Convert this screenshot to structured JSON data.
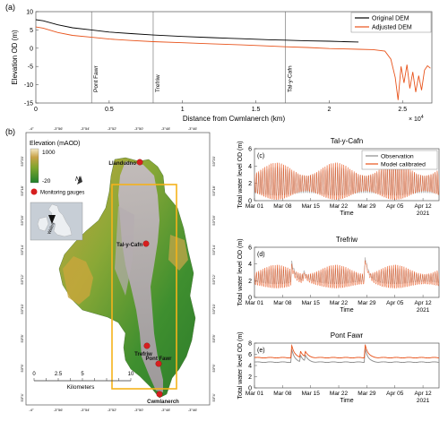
{
  "colors": {
    "original": "#000000",
    "adjusted": "#e8541c",
    "observation": "#8c8c8c",
    "model": "#e8541c",
    "gauge": "#d61f1f",
    "box": "#f5b21b"
  },
  "chart_data": [
    {
      "panel": "(a)",
      "type": "line",
      "xlabel": "Distance from Cwmlanerch (km)",
      "ylabel": "Elevation OD (m)",
      "x_multiplier": "× 10",
      "x_multiplier_exp": "4",
      "xlim": [
        0,
        27000
      ],
      "ylim": [
        -15,
        10
      ],
      "xticks": [
        0,
        5000,
        10000,
        15000,
        20000,
        25000
      ],
      "xtick_labels": [
        "0",
        "0.5",
        "1",
        "1.5",
        "2",
        "2.5"
      ],
      "yticks": [
        10,
        5,
        0,
        -5,
        -10,
        -15
      ],
      "vlines": [
        {
          "x": 3800,
          "label": "Pont Fawr"
        },
        {
          "x": 8000,
          "label": "Trefriw"
        },
        {
          "x": 17000,
          "label": "Tal-y-Cafn"
        }
      ],
      "legend_position": "top-right",
      "series": [
        {
          "name": "Original DEM",
          "color": "#000000",
          "x": [
            0,
            500,
            1500,
            2500,
            3800,
            5000,
            6500,
            8000,
            10000,
            12000,
            14000,
            16000,
            17000,
            18500,
            20000,
            21000,
            22000
          ],
          "y": [
            7.8,
            7.5,
            6.4,
            5.6,
            5.0,
            4.4,
            4.0,
            3.6,
            3.2,
            2.9,
            2.6,
            2.3,
            2.2,
            2.0,
            1.9,
            1.8,
            1.7
          ]
        },
        {
          "name": "Adjusted DEM",
          "color": "#e8541c",
          "x": [
            0,
            500,
            1500,
            2500,
            3800,
            5000,
            6500,
            8000,
            10000,
            12000,
            14000,
            16000,
            17000,
            18500,
            20000,
            21000,
            22000,
            23000,
            23800,
            24200,
            24500,
            24700,
            24900,
            25100,
            25300,
            25500,
            25700,
            25900,
            26100,
            26300,
            26500,
            26700,
            26900
          ],
          "y": [
            5.8,
            5.5,
            4.3,
            3.5,
            3.0,
            2.5,
            2.1,
            1.8,
            1.5,
            1.2,
            0.9,
            0.6,
            0.4,
            0.2,
            -0.1,
            -0.2,
            -0.3,
            -0.4,
            -0.8,
            -3.0,
            -8.0,
            -14.2,
            -5.0,
            -9.5,
            -4.5,
            -11.0,
            -6.5,
            -12.0,
            -7.5,
            -11.5,
            -6.0,
            -4.8,
            -5.5
          ]
        }
      ]
    },
    {
      "panel": "(c)",
      "type": "line",
      "title": "Tal-y-Cafn",
      "ylabel": "Total water level OD (m)",
      "xlabel": "Time",
      "year_label": "2021",
      "xtick_labels": [
        "Mar 01",
        "Mar 08",
        "Mar 15",
        "Mar 22",
        "Mar 29",
        "Apr 05",
        "Apr 12"
      ],
      "xlim_days": [
        0,
        46
      ],
      "ylim": [
        0,
        6
      ],
      "yticks": [
        0,
        2,
        4,
        6
      ],
      "legend_position": "top-right",
      "tidal": {
        "period_days": 0.5175,
        "spring_neap_days": 14.77,
        "spring_peak_day": 5.5
      },
      "series": [
        {
          "name": "Observation",
          "color": "#8c8c8c",
          "high": [
            2.9,
            3.9
          ],
          "low": [
            0.9,
            0.6
          ]
        },
        {
          "name": "Model calibrated",
          "color": "#e8541c",
          "high": [
            2.9,
            4.4
          ],
          "low": [
            1.1,
            0.1
          ]
        }
      ]
    },
    {
      "panel": "(d)",
      "type": "line",
      "title": "Trefriw",
      "ylabel": "Total water level OD (m)",
      "xlabel": "Time",
      "year_label": "2021",
      "xtick_labels": [
        "Mar 01",
        "Mar 08",
        "Mar 15",
        "Mar 22",
        "Mar 29",
        "Apr 05",
        "Apr 12"
      ],
      "xlim_days": [
        0,
        46
      ],
      "ylim": [
        0,
        6
      ],
      "yticks": [
        0,
        2,
        4,
        6
      ],
      "tidal": {
        "period_days": 0.5175,
        "spring_neap_days": 14.77,
        "spring_peak_day": 5.5
      },
      "flood_events": [
        {
          "day": 9.3,
          "peak": 5.2
        },
        {
          "day": 12.3,
          "peak": 3.8
        },
        {
          "day": 27.6,
          "peak": 5.5
        }
      ],
      "series": [
        {
          "name": "Observation",
          "color": "#8c8c8c",
          "high": [
            2.7,
            3.5
          ],
          "low": [
            1.9,
            1.6
          ]
        },
        {
          "name": "Model calibrated",
          "color": "#e8541c",
          "high": [
            2.8,
            3.9
          ],
          "low": [
            1.6,
            1.1
          ]
        }
      ]
    },
    {
      "panel": "(e)",
      "type": "line",
      "title": "Pont Fawr",
      "ylabel": "Total water level OD (m)",
      "xlabel": "Time",
      "year_label": "2021",
      "xtick_labels": [
        "Mar 01",
        "Mar 08",
        "Mar 15",
        "Mar 22",
        "Mar 29",
        "Apr 05",
        "Apr 12"
      ],
      "xlim_days": [
        0,
        46
      ],
      "ylim": [
        0,
        8
      ],
      "yticks": [
        0,
        2,
        4,
        6,
        8
      ],
      "flood_events": [
        {
          "day": 9.3,
          "peak": 7.6
        },
        {
          "day": 11.5,
          "peak": 6.5
        },
        {
          "day": 12.7,
          "peak": 6.3
        },
        {
          "day": 27.6,
          "peak": 7.8
        }
      ],
      "series": [
        {
          "name": "Observation",
          "color": "#8c8c8c",
          "base": 4.6
        },
        {
          "name": "Model calibrated",
          "color": "#e8541c",
          "base": 5.4
        }
      ]
    }
  ],
  "map": {
    "panel": "(b)",
    "legend_title": "Elevation (mAOD)",
    "legend_max": "1000",
    "legend_min": "-20",
    "gauge_legend": "Monitoring gauges",
    "inset_label": "Wales",
    "scale_ticks": [
      "0",
      "2.5",
      "5",
      "10"
    ],
    "scale_unit": "Kilometers",
    "north_symbol": "N",
    "top_ticks": [
      "-4°",
      "-3°56'",
      "-3°54'",
      "-3°52'",
      "-3°50'",
      "-3°48'",
      "-3°46'"
    ],
    "bottom_ticks": [
      "-4°",
      "-3°56'",
      "-3°54'",
      "-3°52'",
      "-3°50'",
      "-3°48'",
      "-3°46'"
    ],
    "left_ticks": [
      "53°20'",
      "53°18'",
      "53°16'",
      "53°14'",
      "53°12'",
      "53°10'",
      "53°8'",
      "53°6'",
      "53°4'"
    ],
    "right_ticks": [
      "53°20'",
      "53°18'",
      "53°16'",
      "53°14'",
      "53°12'",
      "53°10'",
      "53°8'",
      "53°6'",
      "53°4'"
    ],
    "gauges": [
      {
        "name": "Llandudno"
      },
      {
        "name": "Tal-y-Cafn"
      },
      {
        "name": "Trefriw"
      },
      {
        "name": "Pont Fawr"
      },
      {
        "name": "Cwmlanerch"
      }
    ]
  }
}
